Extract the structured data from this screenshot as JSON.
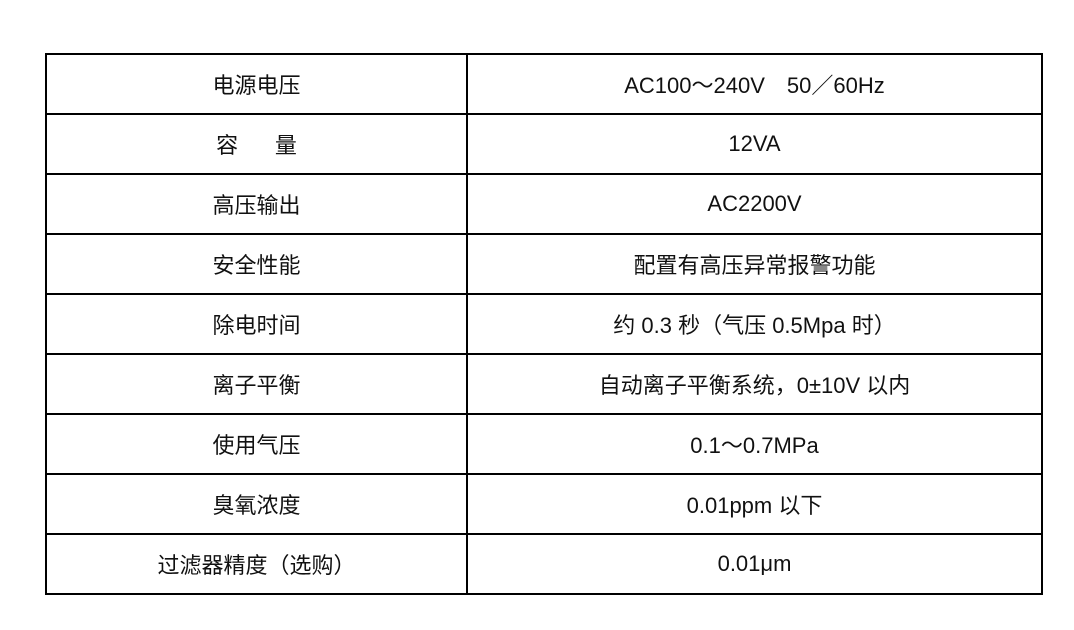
{
  "rows": [
    {
      "label": "电源电压",
      "value": "AC100～240V　50／60Hz"
    },
    {
      "label": "容      量",
      "value": "12VA"
    },
    {
      "label": "高压输出",
      "value": "AC2200V"
    },
    {
      "label": "安全性能",
      "value": "配置有高压异常报警功能"
    },
    {
      "label": "除电时间",
      "value": "约 0.3 秒（气压 0.5Mpa 时）"
    },
    {
      "label": "离子平衡",
      "value": "自动离子平衡系统，0±10V 以内"
    },
    {
      "label": "使用气压",
      "value": "0.1～0.7MPa"
    },
    {
      "label": "臭氧浓度",
      "value": "0.01ppm 以下"
    },
    {
      "label": "过滤器精度（选购）",
      "value": "0.01μm"
    }
  ]
}
